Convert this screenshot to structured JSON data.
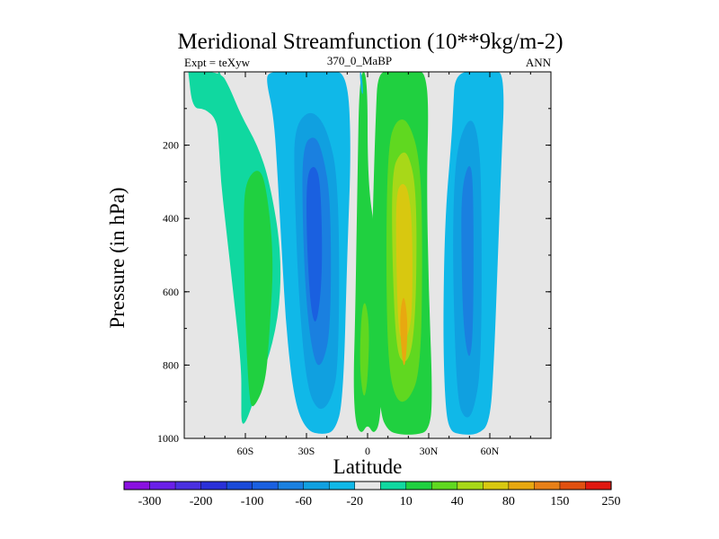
{
  "chart_data": {
    "type": "heatmap",
    "title": "Meridional Streamfunction (10**9kg/m-2)",
    "subtitle_left": "Expt = teXyw",
    "subtitle_center": "370_0_MaBP",
    "subtitle_right": "ANN",
    "xlabel": "Latitude",
    "ylabel": "Pressure (in hPa)",
    "xlim": [
      -90,
      90
    ],
    "ylim": [
      1000,
      0
    ],
    "x_ticks": [
      {
        "value": -60,
        "label": "60S"
      },
      {
        "value": -30,
        "label": "30S"
      },
      {
        "value": 0,
        "label": "0"
      },
      {
        "value": 30,
        "label": "30N"
      },
      {
        "value": 60,
        "label": "60N"
      }
    ],
    "y_ticks": [
      {
        "value": 200,
        "label": "200"
      },
      {
        "value": 400,
        "label": "400"
      },
      {
        "value": 600,
        "label": "600"
      },
      {
        "value": 800,
        "label": "800"
      },
      {
        "value": 1000,
        "label": "1000"
      }
    ],
    "background_color": "#e6e6e6",
    "colorbar": {
      "placement": "bottom",
      "colors": [
        "#8a10e0",
        "#6a20e8",
        "#4a30e0",
        "#2a30d8",
        "#1a4ad8",
        "#1a60e0",
        "#1a80e0",
        "#10a0e0",
        "#10b8e8",
        "#e6e6e6",
        "#10d8a0",
        "#20d040",
        "#60d820",
        "#a8d818",
        "#d8c810",
        "#e8a810",
        "#e88018",
        "#e05010",
        "#e01810"
      ],
      "labels": [
        "-300",
        "-200",
        "-100",
        "-60",
        "-20",
        "10",
        "40",
        "80",
        "150",
        "250"
      ]
    },
    "regions": [
      {
        "name": "sh-ferrel-cell",
        "color": "#10d8a0",
        "lat": [
          -88,
          -72,
          -68,
          -62,
          -54,
          -48,
          -42,
          -44,
          -56,
          -60,
          -62,
          -62,
          -62,
          -66,
          -70,
          -72,
          -73,
          -74,
          -80,
          -86,
          -88
        ],
        "p": [
          0,
          0,
          40,
          120,
          200,
          300,
          500,
          700,
          900,
          960,
          960,
          900,
          800,
          600,
          400,
          300,
          200,
          130,
          100,
          100,
          0
        ]
      },
      {
        "name": "sh-ferrel-core",
        "color": "#20d040",
        "lat": [
          -60,
          -54,
          -50,
          -46,
          -48,
          -50,
          -56,
          -58,
          -60,
          -61
        ],
        "p": [
          300,
          260,
          300,
          500,
          700,
          850,
          920,
          900,
          700,
          400
        ]
      },
      {
        "name": "sh-ferrel-cap",
        "color": "#10d8a0",
        "lat": [
          -74,
          -72,
          -70,
          -72
        ],
        "p": [
          0,
          0,
          80,
          80
        ]
      },
      {
        "name": "sh-hadley-cell",
        "color": "#10b8e8",
        "lat": [
          -48,
          -40,
          -30,
          -20,
          -10,
          -8,
          -10,
          -12,
          -16,
          -22,
          -30,
          -36,
          -40,
          -42,
          -44,
          -46,
          -50
        ],
        "p": [
          0,
          0,
          0,
          0,
          0,
          200,
          500,
          900,
          980,
          990,
          980,
          900,
          700,
          500,
          300,
          120,
          20
        ]
      },
      {
        "name": "sh-hadley-mid",
        "color": "#10a0e0",
        "lat": [
          -36,
          -28,
          -20,
          -14,
          -14,
          -18,
          -24,
          -30,
          -34,
          -36
        ],
        "p": [
          150,
          100,
          150,
          300,
          800,
          900,
          930,
          860,
          600,
          300
        ]
      },
      {
        "name": "sh-hadley-inner",
        "color": "#1a80e0",
        "lat": [
          -32,
          -26,
          -22,
          -18,
          -18,
          -22,
          -26,
          -30,
          -32
        ],
        "p": [
          200,
          170,
          220,
          350,
          700,
          800,
          800,
          650,
          400
        ]
      },
      {
        "name": "sh-hadley-core",
        "color": "#1a60e0",
        "lat": [
          -30,
          -26,
          -23,
          -22,
          -25,
          -28,
          -30
        ],
        "p": [
          280,
          250,
          300,
          550,
          700,
          650,
          450
        ]
      },
      {
        "name": "equatorial-band",
        "color": "#20d040",
        "lat": [
          -4,
          0,
          0,
          4,
          6,
          7,
          6,
          3,
          0,
          -3,
          -6,
          -7,
          -6,
          -5
        ],
        "p": [
          0,
          0,
          300,
          450,
          650,
          850,
          960,
          990,
          960,
          990,
          960,
          850,
          650,
          300
        ]
      },
      {
        "name": "equatorial-core",
        "color": "#60d820",
        "lat": [
          -3,
          -1,
          1,
          0,
          -2,
          -4
        ],
        "p": [
          650,
          620,
          700,
          850,
          900,
          800
        ]
      },
      {
        "name": "equatorial-tip",
        "color": "#10b8e8",
        "lat": [
          -4,
          -3,
          -2,
          -3
        ],
        "p": [
          0,
          0,
          60,
          60
        ]
      },
      {
        "name": "nh-hadley-cell",
        "color": "#20d040",
        "lat": [
          5,
          12,
          18,
          24,
          28,
          30,
          29,
          30,
          32,
          30,
          24,
          16,
          10,
          6,
          4,
          2,
          3,
          4
        ],
        "p": [
          0,
          0,
          0,
          0,
          0,
          80,
          300,
          600,
          900,
          980,
          990,
          990,
          980,
          930,
          700,
          500,
          300,
          120
        ]
      },
      {
        "name": "nh-hadley-mid",
        "color": "#60d820",
        "lat": [
          10,
          14,
          20,
          26,
          27,
          26,
          20,
          14,
          10,
          9
        ],
        "p": [
          200,
          130,
          130,
          240,
          500,
          820,
          900,
          900,
          800,
          500
        ]
      },
      {
        "name": "nh-hadley-inner",
        "color": "#a8d818",
        "lat": [
          12,
          16,
          20,
          24,
          24,
          22,
          18,
          14,
          12
        ],
        "p": [
          270,
          220,
          220,
          320,
          600,
          760,
          800,
          760,
          500
        ]
      },
      {
        "name": "nh-hadley-core",
        "color": "#d8c810",
        "lat": [
          14,
          17,
          20,
          22,
          22,
          20,
          17,
          15,
          14
        ],
        "p": [
          330,
          300,
          320,
          420,
          650,
          720,
          740,
          700,
          500
        ]
      },
      {
        "name": "nh-hadley-max",
        "color": "#e8a810",
        "lat": [
          16,
          18,
          20,
          18,
          16
        ],
        "p": [
          650,
          600,
          700,
          830,
          720
        ]
      },
      {
        "name": "nh-ferrel-cell",
        "color": "#10b8e8",
        "lat": [
          43,
          56,
          62,
          66,
          67,
          66,
          64,
          62,
          60,
          54,
          46,
          40,
          38,
          37,
          38,
          41,
          42
        ],
        "p": [
          0,
          0,
          0,
          0,
          80,
          200,
          500,
          800,
          960,
          990,
          990,
          980,
          900,
          700,
          400,
          200,
          100
        ]
      },
      {
        "name": "nh-ferrel-mid",
        "color": "#10a0e0",
        "lat": [
          44,
          50,
          54,
          56,
          56,
          52,
          48,
          44,
          42,
          42
        ],
        "p": [
          200,
          120,
          160,
          300,
          800,
          930,
          950,
          900,
          600,
          350
        ]
      },
      {
        "name": "nh-ferrel-core",
        "color": "#1a80e0",
        "lat": [
          46,
          50,
          52,
          52,
          50,
          47,
          46
        ],
        "p": [
          320,
          240,
          300,
          700,
          800,
          700,
          500
        ]
      }
    ]
  }
}
